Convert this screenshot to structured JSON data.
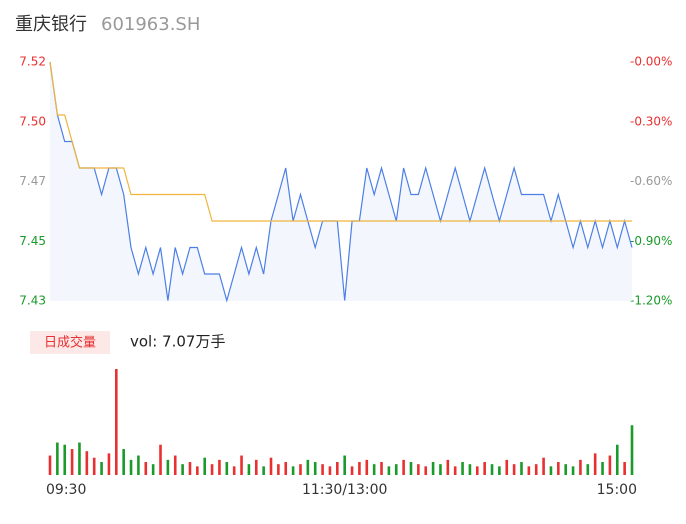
{
  "chart_data": {
    "type": "line",
    "title": "重庆银行",
    "subtitle": "601963.SH",
    "categories": [
      "09:30",
      null,
      null,
      null,
      null,
      null,
      null,
      null,
      null,
      null,
      null,
      null,
      null,
      null,
      null,
      null,
      null,
      null,
      null,
      null,
      null,
      null,
      null,
      null,
      null,
      null,
      null,
      null,
      null,
      null,
      null,
      null,
      null,
      null,
      null,
      null,
      null,
      null,
      null,
      null,
      "11:30/13:00",
      null,
      null,
      null,
      null,
      null,
      null,
      null,
      null,
      null,
      null,
      null,
      null,
      null,
      null,
      null,
      null,
      null,
      null,
      null,
      null,
      null,
      null,
      null,
      null,
      null,
      null,
      null,
      null,
      null,
      null,
      null,
      null,
      null,
      null,
      null,
      null,
      null,
      null,
      "15:00"
    ],
    "series": [
      {
        "color": "#4c7fe6",
        "values": [
          7.52,
          7.5,
          7.49,
          7.49,
          7.48,
          7.48,
          7.48,
          7.47,
          7.48,
          7.48,
          7.47,
          7.45,
          7.44,
          7.45,
          7.44,
          7.45,
          7.43,
          7.45,
          7.44,
          7.45,
          7.45,
          7.44,
          7.44,
          7.44,
          7.43,
          7.44,
          7.45,
          7.44,
          7.45,
          7.44,
          7.46,
          7.47,
          7.48,
          7.46,
          7.47,
          7.46,
          7.45,
          7.46,
          7.46,
          7.46,
          7.43,
          7.46,
          7.46,
          7.48,
          7.47,
          7.48,
          7.47,
          7.46,
          7.48,
          7.47,
          7.47,
          7.48,
          7.47,
          7.46,
          7.47,
          7.48,
          7.47,
          7.46,
          7.47,
          7.48,
          7.47,
          7.46,
          7.47,
          7.48,
          7.47,
          7.47,
          7.47,
          7.47,
          7.46,
          7.47,
          7.46,
          7.45,
          7.46,
          7.45,
          7.46,
          7.45,
          7.46,
          7.45,
          7.46,
          7.45
        ]
      },
      {
        "color": "#f0b43c",
        "values": [
          7.52,
          7.5,
          7.5,
          7.49,
          7.48,
          7.48,
          7.48,
          7.48,
          7.48,
          7.48,
          7.48,
          7.47,
          7.47,
          7.47,
          7.47,
          7.47,
          7.47,
          7.47,
          7.47,
          7.47,
          7.47,
          7.47,
          7.46,
          7.46,
          7.46,
          7.46,
          7.46,
          7.46,
          7.46,
          7.46,
          7.46,
          7.46,
          7.46,
          7.46,
          7.46,
          7.46,
          7.46,
          7.46,
          7.46,
          7.46,
          7.46,
          7.46,
          7.46,
          7.46,
          7.46,
          7.46,
          7.46,
          7.46,
          7.46,
          7.46,
          7.46,
          7.46,
          7.46,
          7.46,
          7.46,
          7.46,
          7.46,
          7.46,
          7.46,
          7.46,
          7.46,
          7.46,
          7.46,
          7.46,
          7.46,
          7.46,
          7.46,
          7.46,
          7.46,
          7.46,
          7.46,
          7.46,
          7.46,
          7.46,
          7.46,
          7.46,
          7.46,
          7.46,
          7.46,
          7.46
        ]
      }
    ],
    "ylim": [
      7.4298,
      7.52
    ],
    "yticks": [
      {
        "value": 7.52,
        "label": "7.52"
      },
      {
        "value": 7.4974,
        "label": "7.50"
      },
      {
        "value": 7.4749,
        "label": "7.47"
      },
      {
        "value": 7.4523,
        "label": "7.45"
      },
      {
        "value": 7.4298,
        "label": "7.43"
      }
    ],
    "ytick_colors": [
      "#e83030",
      "#e83030",
      "#999999",
      "#1a9a2a",
      "#1a9a2a"
    ],
    "y2lim": [
      -1.2,
      0
    ],
    "y2ticks": [
      {
        "value": 0,
        "label": "-0.00%"
      },
      {
        "value": -0.3,
        "label": "-0.30%"
      },
      {
        "value": -0.6,
        "label": "-0.60%"
      },
      {
        "value": -0.9,
        "label": "-0.90%"
      },
      {
        "value": -1.2,
        "label": "-1.20%"
      }
    ],
    "volume": {
      "label": "日成交量",
      "summary": "vol: 7.07万手",
      "up_color": "#e83030",
      "down_color": "#1a9a2a",
      "values": [
        900,
        1500,
        1400,
        1200,
        1500,
        1100,
        800,
        600,
        1000,
        4900,
        1200,
        700,
        900,
        600,
        500,
        1400,
        700,
        900,
        500,
        600,
        400,
        800,
        500,
        700,
        600,
        400,
        900,
        500,
        700,
        400,
        800,
        500,
        600,
        400,
        500,
        700,
        600,
        500,
        400,
        600,
        900,
        400,
        600,
        700,
        500,
        600,
        400,
        500,
        700,
        600,
        500,
        400,
        600,
        500,
        700,
        400,
        600,
        500,
        400,
        600,
        500,
        400,
        700,
        500,
        600,
        400,
        500,
        800,
        400,
        600,
        500,
        400,
        700,
        500,
        1000,
        600,
        900,
        1400,
        600,
        2300
      ]
    }
  }
}
